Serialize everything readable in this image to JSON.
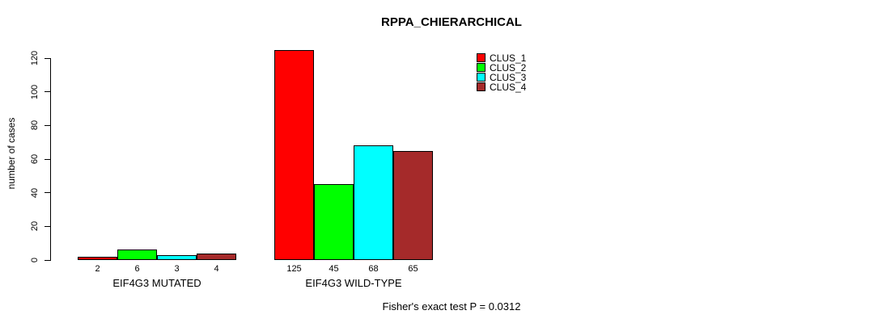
{
  "title": "RPPA_CHIERARCHICAL",
  "ylabel": "number of cases",
  "footer": "Fisher's exact test P = 0.0312",
  "chart_data": {
    "type": "bar",
    "grouped": true,
    "title": "RPPA_CHIERARCHICAL",
    "xlabel": "",
    "ylabel": "number of cases",
    "categories": [
      "EIF4G3 MUTATED",
      "EIF4G3 WILD-TYPE"
    ],
    "series": [
      {
        "name": "CLUS_1",
        "color": "#FF0000",
        "values": [
          2,
          125
        ]
      },
      {
        "name": "CLUS_2",
        "color": "#00FF00",
        "values": [
          6,
          45
        ]
      },
      {
        "name": "CLUS_3",
        "color": "#00FFFF",
        "values": [
          3,
          68
        ]
      },
      {
        "name": "CLUS_4",
        "color": "#A52A2A",
        "values": [
          4,
          65
        ]
      }
    ],
    "bar_labels": [
      [
        2,
        6,
        3,
        4
      ],
      [
        125,
        45,
        68,
        65
      ]
    ],
    "yticks": [
      0,
      20,
      40,
      60,
      80,
      100,
      120
    ],
    "ylim": [
      0,
      125
    ],
    "grid": false,
    "legend_position": "top-right",
    "legend_entries": [
      "CLUS_1",
      "CLUS_2",
      "CLUS_3",
      "CLUS_4"
    ],
    "annotation": "Fisher's exact test P = 0.0312"
  }
}
